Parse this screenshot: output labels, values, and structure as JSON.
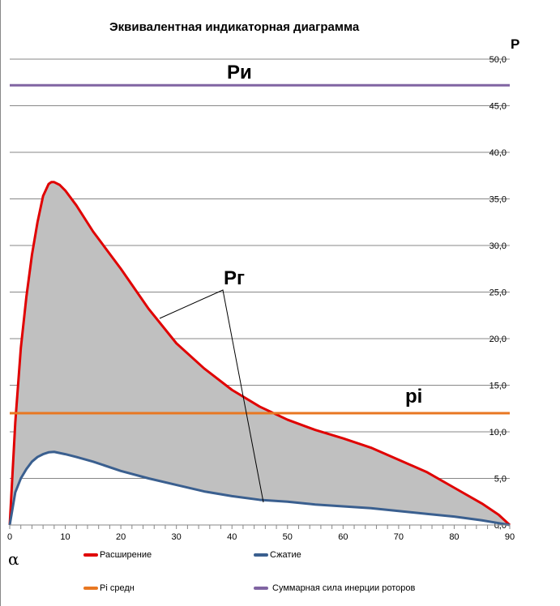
{
  "chart_data": {
    "type": "area",
    "title": "Эквивалентная  индикаторная  диаграмма",
    "xlabel": "α",
    "ylabel": "P",
    "xlim": [
      0,
      90
    ],
    "ylim": [
      0,
      50
    ],
    "x_ticks": [
      "0",
      "10",
      "20",
      "30",
      "40",
      "50",
      "60",
      "70",
      "80",
      "90"
    ],
    "y_ticks": [
      "0,0",
      "5,0",
      "10,0",
      "15,0",
      "20,0",
      "25,0",
      "30,0",
      "35,0",
      "40,0",
      "45,0",
      "50,0"
    ],
    "grid": true,
    "series": [
      {
        "name": "Расширение",
        "color": "#e00000",
        "x": [
          0,
          1,
          2,
          3,
          4,
          5,
          6,
          7,
          7.5,
          8,
          9,
          10,
          12,
          15,
          20,
          25,
          30,
          35,
          40,
          45,
          50,
          55,
          60,
          65,
          70,
          75,
          80,
          85,
          88,
          90
        ],
        "y": [
          0,
          11,
          19,
          24.5,
          29,
          32.5,
          35.3,
          36.6,
          36.8,
          36.8,
          36.5,
          35.9,
          34.3,
          31.5,
          27.5,
          23.2,
          19.5,
          16.8,
          14.5,
          12.7,
          11.3,
          10.2,
          9.3,
          8.3,
          7.0,
          5.7,
          4.0,
          2.3,
          1.1,
          0
        ]
      },
      {
        "name": "Сжатие",
        "color": "#3a5f8f",
        "x": [
          0,
          1,
          2,
          3,
          4,
          5,
          6,
          7,
          8,
          10,
          12,
          15,
          20,
          25,
          30,
          35,
          40,
          45,
          50,
          55,
          60,
          65,
          70,
          75,
          80,
          85,
          88,
          90
        ],
        "y": [
          0,
          3.5,
          5.0,
          6.0,
          6.8,
          7.3,
          7.6,
          7.8,
          7.85,
          7.6,
          7.3,
          6.8,
          5.8,
          5.0,
          4.3,
          3.6,
          3.1,
          2.7,
          2.5,
          2.2,
          2.0,
          1.8,
          1.5,
          1.2,
          0.9,
          0.5,
          0.2,
          0
        ]
      },
      {
        "name": "Pi средн",
        "color": "#e87722",
        "value": 12.0
      },
      {
        "name": "Суммарная сила инерции роторов",
        "color": "#8064a2",
        "value": 47.2
      }
    ],
    "annotations": {
      "p_inertia": "Pи",
      "p_gas": "Pг",
      "p_i": "pi"
    },
    "legend": "bottom"
  }
}
